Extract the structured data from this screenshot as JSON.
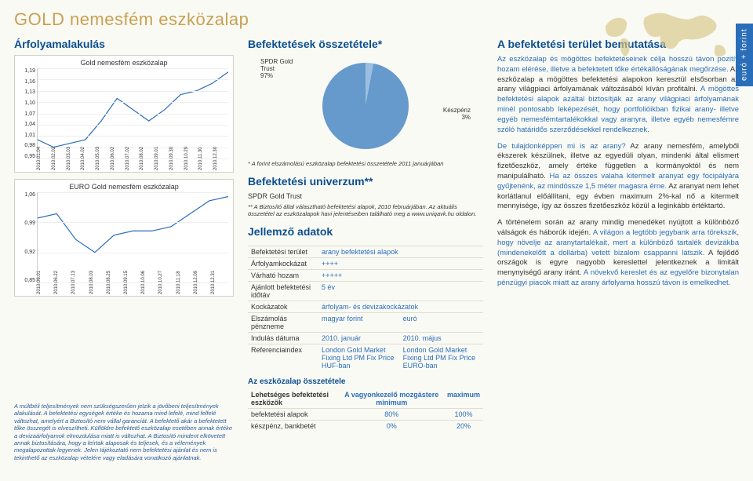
{
  "page_title": "GOLD nemesfém eszközalap",
  "side_tab": "euró + forint",
  "left": {
    "heading": "Árfolyamalakulás",
    "chart1": {
      "caption": "Gold nemesfém eszközalap",
      "type": "line",
      "ylim": [
        0.95,
        1.19
      ],
      "yticks": [
        "1,19",
        "1,16",
        "1,13",
        "1,10",
        "1,07",
        "1,04",
        "1,01",
        "0,98",
        "0,95"
      ],
      "xticks": [
        "2010.01.04",
        "2010.02.02",
        "2010.03.03",
        "2010.04.02",
        "2010.05.03",
        "2010.06.02",
        "2010.07.02",
        "2010.08.02",
        "2010.09.01",
        "2010.09.30",
        "2010.10.29",
        "2010.11.30",
        "2010.12.30"
      ],
      "line_color": "#2a6db8",
      "background_color": "#ffffff",
      "grid_color": "#eeeeee",
      "values": [
        1.0,
        0.98,
        0.99,
        1.0,
        1.05,
        1.11,
        1.08,
        1.05,
        1.08,
        1.12,
        1.13,
        1.15,
        1.18
      ]
    },
    "chart2": {
      "caption": "EURO Gold nemesfém eszközalap",
      "type": "line",
      "ylim": [
        0.85,
        1.06
      ],
      "yticks": [
        "1,06",
        "0,99",
        "0,92",
        "0,85"
      ],
      "xticks": [
        "2010.06.01",
        "2010.06.22",
        "2010.07.13",
        "2010.08.03",
        "2010.08.25",
        "2010.09.15",
        "2010.10.06",
        "2010.10.27",
        "2010.11.18",
        "2010.12.09",
        "2010.12.31"
      ],
      "line_color": "#2a6db8",
      "background_color": "#ffffff",
      "grid_color": "#eeeeee",
      "values": [
        1.0,
        1.01,
        0.95,
        0.92,
        0.96,
        0.97,
        0.97,
        0.98,
        1.01,
        1.04,
        1.05
      ]
    },
    "disclaimer": "A múltbéli teljesítmények nem szükségszerűen jelzik a jövőbeni teljesítmények alakulását. A befektetési egységek értéke és hozama mind lefelé, mind felfelé változhat, amelyért a Biztosító nem vállal garanciát. A befektető akár a befektetett tőke összegét is elveszítheti. Külföldre befektető eszközalap esetében annak értéke a devizaárfolyamok elmozdulása miatt is változhat. A Biztosító mindent elkövetett annak biztosítására, hogy a leírtak alaposak és teljesek, és a vélemények megalapozottak legyenek. Jelen tájékoztató nem befektetési ajánlat és nem is tekinthető az eszközalap vételére vagy eladására vonatkozó ajánlatnak."
  },
  "mid": {
    "heading_comp": "Befektetések összetétele*",
    "pie": {
      "type": "pie",
      "slices": [
        {
          "label": "SPDR Gold Trust",
          "value": 97,
          "color": "#6699cc"
        },
        {
          "label": "Készpénz",
          "value": 3,
          "color": "#9bbfe0"
        }
      ],
      "label1": "SPDR Gold\nTrust\n97%",
      "label2": "Készpénz\n3%"
    },
    "footnote_comp": "* A forint elszámolású eszközalap befektetési összetétele 2011 januárjában",
    "heading_univ": "Befektetési univerzum**",
    "univ_item": "SPDR Gold Trust",
    "footnote_univ": "** A Biztosító által választható befektetési alapok, 2010 februárjában. Az aktuális összetétel az eszközalapok havi jelentéseiben található meg a www.uniqavk.hu oldalon.",
    "heading_char": "Jellemző adatok",
    "table": {
      "rows": [
        [
          "Befektetési terület",
          "arany befektetési alapok",
          ""
        ],
        [
          "Árfolyamkockázat",
          "++++",
          ""
        ],
        [
          "Várható hozam",
          "+++++",
          ""
        ],
        [
          "Ajánlott befektetési időtáv",
          "5 év",
          ""
        ],
        [
          "Kockázatok",
          "árfolyam- és devizakockázatok",
          ""
        ],
        [
          "Elszámolás pénzneme",
          "magyar forint",
          "euró"
        ],
        [
          "Indulás dátuma",
          "2010. január",
          "2010. május"
        ],
        [
          "Referenciaindex",
          "London Gold Market Fixing Ltd PM Fix Price HUF-ban",
          "London Gold Market Fixing Ltd PM Fix Price EURO-ban"
        ]
      ]
    },
    "heading_comp2": "Az eszközalap összetétele",
    "table2": {
      "head": [
        "Lehetséges befektetési eszközök",
        "A vagyonkezelő mozgástere minimum",
        "maximum"
      ],
      "rows": [
        [
          "befektetési alapok",
          "80%",
          "100%"
        ],
        [
          "készpénz, bankbetét",
          "0%",
          "20%"
        ]
      ]
    }
  },
  "right": {
    "heading": "A befektetési terület bemutatása",
    "para1_lead": "Az eszközalap és mögöttes befektetéseinek célja hosszú távon pozitív hozam elérése, illetve a befektetett tőke értékállóságának megőrzése.",
    "para1_rest": " Az eszközalap a mögöttes befektetési alapokon keresztül elsősorban az arany világpiaci árfolyamának változásából kíván profitálni. ",
    "para1_lead2": "A mögöttes befektetési alapok azáltal biztosítják az arany világpiaci árfolyamának minél pontosabb leképezését, hogy portfolióikban fizikai arany- illetve egyéb nemesfémtartalékokkal vagy aranyra, illetve egyéb nemesfémre szóló határidős szerződésekkel rendelkeznek.",
    "para2_lead": "De tulajdonképpen mi is az arany?",
    "para2_rest": " Az arany nemesfém, amelyből ékszerek készülnek, illetve az egyedüli olyan, mindenki által elismert fizetőeszköz, amely értéke független a kormányoktól és nem manipulálható. ",
    "para2_lead2": "Ha az összes valaha kitermelt aranyat egy focipályára gyűjtenénk, az mindössze 1,5 méter magasra érne.",
    "para2_rest2": " Az aranyat nem lehet korlátlanul előállítani, egy évben maximum 2%-kal nő a kitermelt mennyisége, így az összes fizetőeszköz közül a leginkább értéktartó.",
    "para3": "A történelem során az arany mindig menedéket nyújtott a különböző válságok és háborúk idején. ",
    "para3_lead": "A világon a legtöbb jegybank arra törekszik, hogy növelje az aranytartalékait, mert a különböző tartalék devizákba (mindenekelőtt a dollárba) vetett bizalom csappanni látszik.",
    "para3_rest2": " A fejlődő országok is egyre nagyobb kereslettel jelentkeznek a limitált menynyiségű arany iránt. ",
    "para3_lead2": "A növekvő kereslet és az egyelőre bizonytalan pénzügyi piacok miatt az arany árfolyama hosszú távon is emelkedhet."
  }
}
